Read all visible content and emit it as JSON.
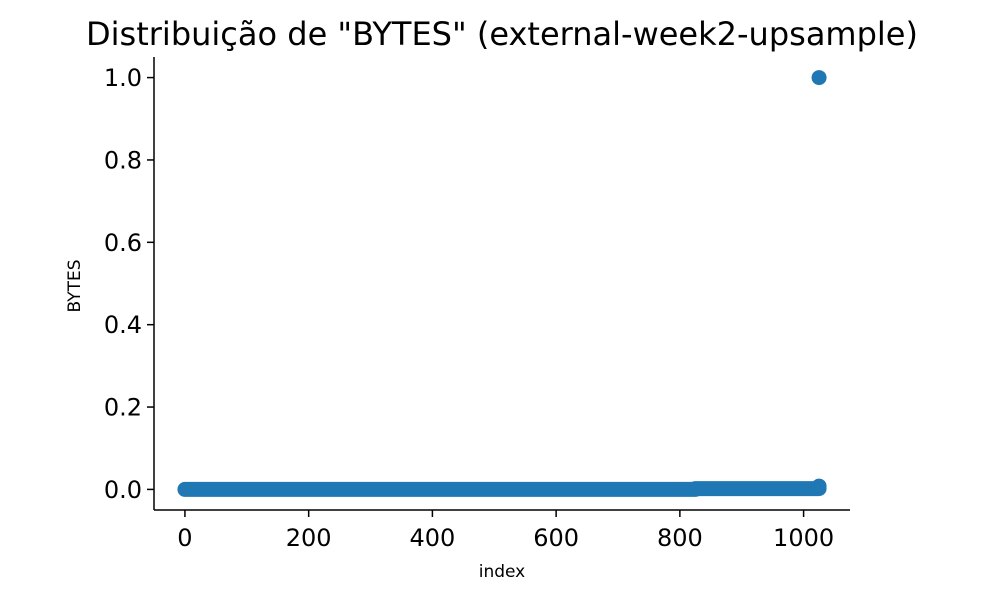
{
  "chart_data": {
    "type": "scatter",
    "title": "Distribuição de \"BYTES\" (external-week2-upsample)",
    "xlabel": "index",
    "ylabel": "BYTES",
    "xlim": [
      -50,
      1075
    ],
    "ylim": [
      -0.05,
      1.05
    ],
    "xticks": [
      0,
      200,
      400,
      600,
      800,
      1000
    ],
    "xtick_labels": [
      "0",
      "200",
      "400",
      "600",
      "800",
      "1000"
    ],
    "yticks": [
      0.0,
      0.2,
      0.4,
      0.6,
      0.8,
      1.0
    ],
    "ytick_labels": [
      "0.0",
      "0.2",
      "0.4",
      "0.6",
      "0.8",
      "1.0"
    ],
    "grid": false,
    "marker_color": "#1f77b4",
    "series": [
      {
        "segments": [
          {
            "x_start": 0,
            "x_end": 825,
            "y": 0.0
          },
          {
            "x_start": 825,
            "x_end": 1025,
            "y": 0.002
          }
        ],
        "points": [
          {
            "x": 1025,
            "y": 0.008
          },
          {
            "x": 1025,
            "y": 1.0
          }
        ]
      }
    ]
  }
}
